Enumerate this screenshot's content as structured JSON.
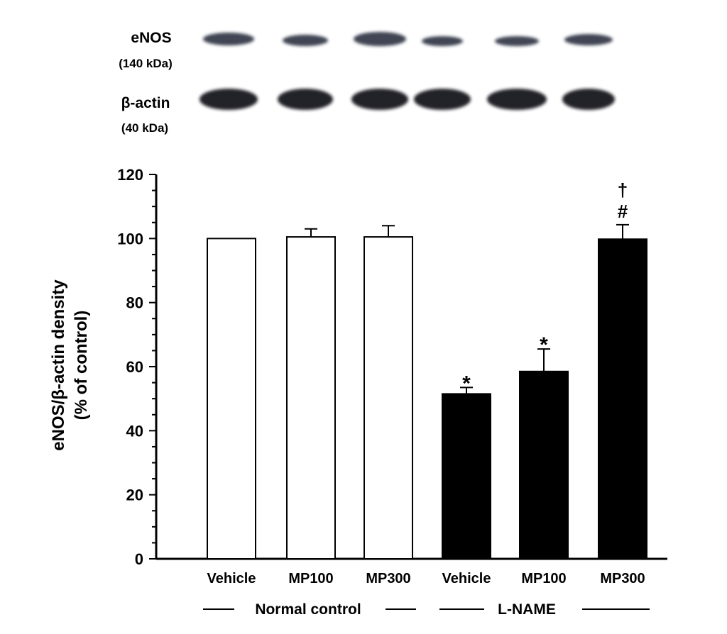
{
  "blot": {
    "rows": [
      {
        "protein": "eNOS",
        "size": "(140 kDa)"
      },
      {
        "protein": "β-actin",
        "size": "(40 kDa)"
      }
    ]
  },
  "chart_data": {
    "type": "bar",
    "categories": [
      "Vehicle",
      "MP100",
      "MP300",
      "Vehicle",
      "MP100",
      "MP300"
    ],
    "values": [
      100,
      100.5,
      100.5,
      51.5,
      58.5,
      99.8
    ],
    "errors": [
      0,
      2.5,
      3.5,
      2.0,
      7.0,
      4.5
    ],
    "fills": [
      "#ffffff",
      "#ffffff",
      "#ffffff",
      "#000000",
      "#000000",
      "#000000"
    ],
    "annotations": [
      "",
      "",
      "",
      "*",
      "*",
      "†\n#"
    ],
    "groups": [
      {
        "label": "Normal control",
        "members": [
          0,
          1,
          2
        ]
      },
      {
        "label": "L-NAME",
        "members": [
          3,
          4,
          5
        ]
      }
    ],
    "ylabel_line1": "eNOS/β-actin density",
    "ylabel_line2": "(% of control)",
    "ylim": [
      0,
      120
    ],
    "yticks": [
      "0",
      "20",
      "40",
      "60",
      "80",
      "100",
      "120"
    ],
    "minor_tick_step": 5,
    "grid": false
  }
}
